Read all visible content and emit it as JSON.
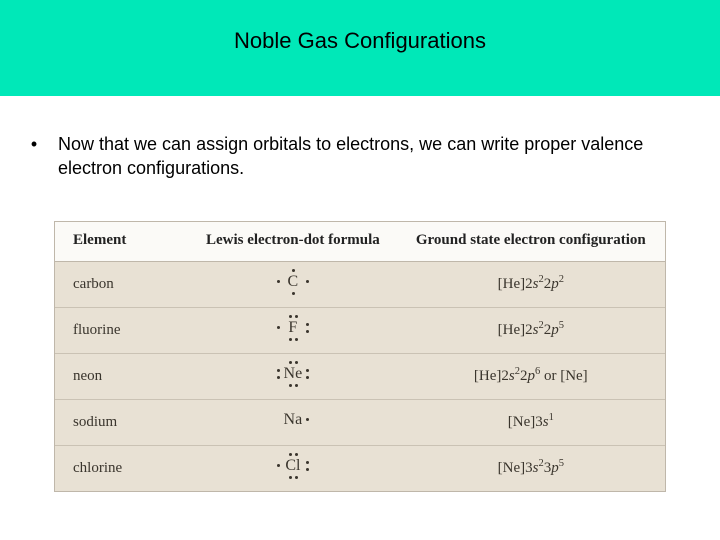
{
  "title": "Noble Gas Configurations",
  "bullet_text": "Now that we can assign orbitals to electrons, we can write proper valence electron configurations.",
  "colors": {
    "title_band": "#00e8b8",
    "table_header_bg": "#fbfaf7",
    "table_body_bg": "#e8e1d4",
    "table_border": "#bfb7aa",
    "row_divider": "#cac2b4",
    "text_primary": "#000000",
    "text_table": "#3a352d"
  },
  "table": {
    "headers": {
      "element": "Element",
      "lewis": "Lewis electron-dot formula",
      "config": "Ground state electron configuration"
    },
    "rows": [
      {
        "element": "carbon",
        "symbol": "C",
        "dots": [
          "topc",
          "rgtc",
          "botc",
          "lftc"
        ],
        "config_html": "[He]2<i>s</i><sup>2</sup>2<i>p</i><sup>2</sup>"
      },
      {
        "element": "fluorine",
        "symbol": "F",
        "dots": [
          "top1",
          "top2",
          "rgt1",
          "rgt2",
          "bot1",
          "bot2",
          "lftc"
        ],
        "config_html": "[He]2<i>s</i><sup>2</sup>2<i>p</i><sup>5</sup>"
      },
      {
        "element": "neon",
        "symbol": "Ne",
        "dots": [
          "top1",
          "top2",
          "rgt1",
          "rgt2",
          "bot1",
          "bot2",
          "lft1",
          "lft2"
        ],
        "config_html": "[He]2<i>s</i><sup>2</sup>2<i>p</i><sup>6</sup> or [Ne]"
      },
      {
        "element": "sodium",
        "symbol": "Na",
        "dots": [
          "rgtc"
        ],
        "config_html": "[Ne]3<i>s</i><sup>1</sup>"
      },
      {
        "element": "chlorine",
        "symbol": "Cl",
        "dots": [
          "top1",
          "top2",
          "rgt1",
          "rgt2",
          "bot1",
          "bot2",
          "lftc"
        ],
        "config_html": "[Ne]3<i>s</i><sup>2</sup>3<i>p</i><sup>5</sup>"
      }
    ]
  }
}
